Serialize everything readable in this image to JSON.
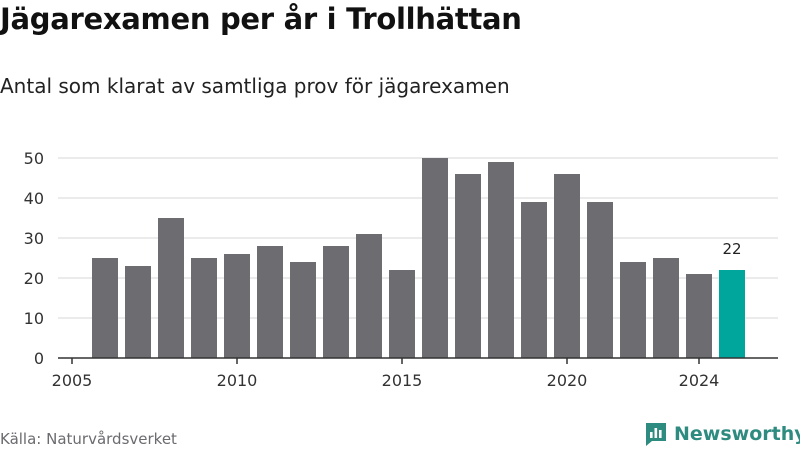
{
  "header": {
    "title": "Jägarexamen per år i Trollhättan",
    "subtitle": "Antal som klarat av samtliga prov för jägarexamen"
  },
  "footer": {
    "source": "Källa: Naturvårdsverket",
    "brand": "Newsworthy",
    "brand_icon": "newsworthy-logo-icon"
  },
  "colors": {
    "bar": "#6d6c71",
    "highlight": "#00a69c",
    "grid": "#d7d7d7",
    "axis": "#333333",
    "brand": "#2e8b80"
  },
  "chart_data": {
    "type": "bar",
    "title": "Jägarexamen per år i Trollhättan",
    "subtitle": "Antal som klarat av samtliga prov för jägarexamen",
    "x": [
      2006,
      2007,
      2008,
      2009,
      2010,
      2011,
      2012,
      2013,
      2014,
      2015,
      2016,
      2017,
      2018,
      2019,
      2020,
      2021,
      2022,
      2023,
      2024,
      2025
    ],
    "values": [
      25,
      23,
      35,
      25,
      26,
      28,
      24,
      28,
      31,
      22,
      50,
      46,
      49,
      39,
      46,
      39,
      24,
      25,
      21,
      22
    ],
    "x_tick_labels": [
      "2005",
      "2010",
      "2015",
      "2020",
      "2024"
    ],
    "y_ticks": [
      0,
      10,
      20,
      30,
      40,
      50
    ],
    "ylim": [
      0,
      50
    ],
    "grid": true,
    "highlight_index": 19,
    "data_labels": [
      {
        "index": 19,
        "text": "22"
      }
    ]
  }
}
